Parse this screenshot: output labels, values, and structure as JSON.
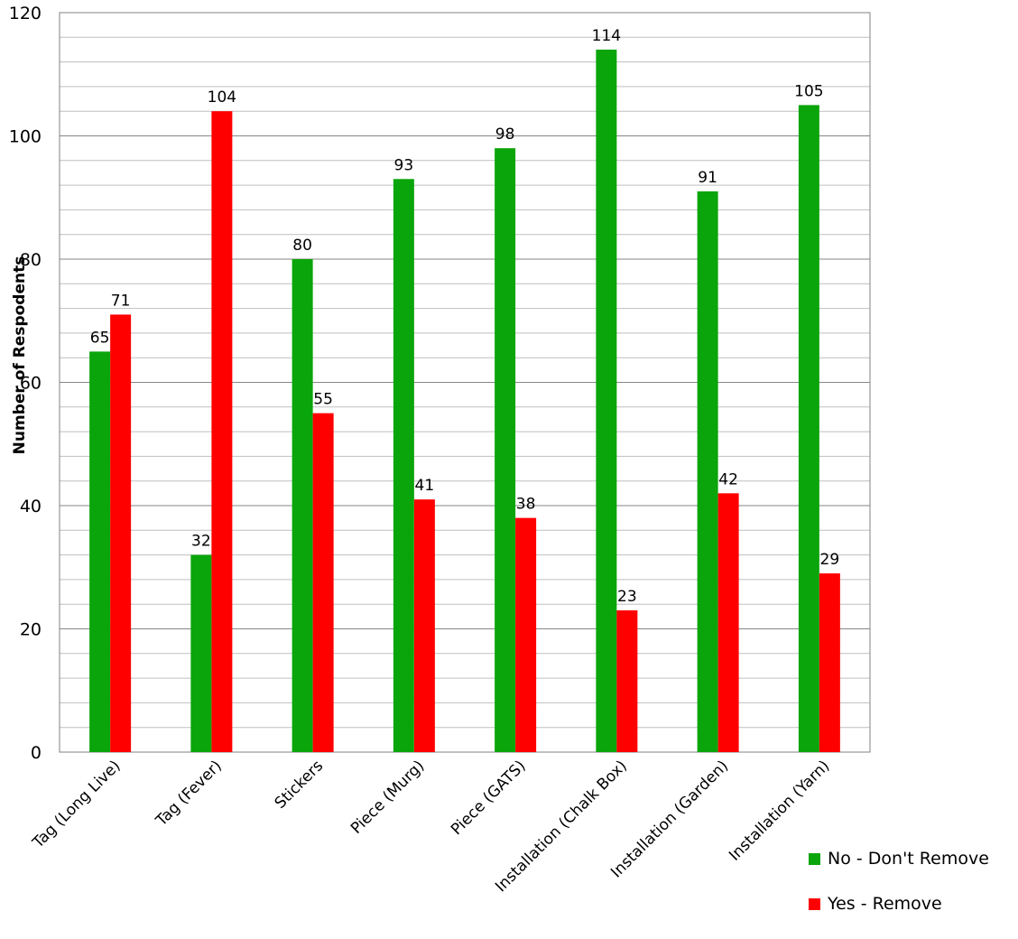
{
  "chart_data": {
    "type": "bar",
    "title": "",
    "xlabel": "",
    "ylabel": "Number of Respodents",
    "ylim": [
      0,
      120
    ],
    "yticks": [
      0,
      20,
      40,
      60,
      80,
      100,
      120
    ],
    "grid": true,
    "legend_position": "bottom-right",
    "categories": [
      "Tag (Long Live)",
      "Tag (Fever)",
      "Stickers",
      "Piece (Murg)",
      "Piece (GATS)",
      "Installation (Chalk Box)",
      "Installation (Garden)",
      "Installation (Yarn)"
    ],
    "series": [
      {
        "name": "No - Don't Remove",
        "color": "#0aa50a",
        "values": [
          65,
          32,
          80,
          93,
          98,
          114,
          91,
          105
        ]
      },
      {
        "name": "Yes - Remove",
        "color": "#ff0000",
        "values": [
          71,
          104,
          55,
          41,
          38,
          23,
          42,
          29
        ]
      }
    ]
  }
}
